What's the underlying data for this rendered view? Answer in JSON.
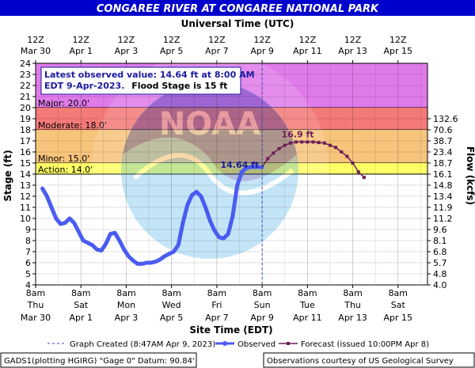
{
  "header": {
    "title": "CONGAREE RIVER AT CONGAREE NATIONAL PARK",
    "top_axis_title": "Universal Time (UTC)",
    "bottom_axis_title": "Site Time (EDT)"
  },
  "colors": {
    "title_bg": "#0000cc",
    "major_band": "#e07bea",
    "moderate_band": "#f47a78",
    "minor_band": "#f7c47c",
    "action_band": "#ffff66",
    "observed_line": "#4a5cf0",
    "forecast_line": "#6b1e5a",
    "info_text": "#1a1aa0"
  },
  "info_box": {
    "line1": "Latest observed value: 14.64 ft at 8:00 AM",
    "line2a": "EDT 9-Apr-2023.",
    "line2b": "Flood Stage is 15 ft"
  },
  "legend": {
    "created": "Graph Created (8:47AM Apr 9, 2023)",
    "observed": "Observed",
    "forecast": "Forecast (issued 10:00PM Apr 8)"
  },
  "footer": {
    "left": "GADS1(plotting HGIRG) \"Gage 0\" Datum: 90.84'",
    "right": "Observations courtesy of US Geological Survey"
  },
  "chart_data": {
    "type": "line",
    "ylabel": "Stage (ft)",
    "y2label": "Flow (kcfs)",
    "ylim": [
      4,
      24
    ],
    "y_ticks": [
      4,
      5,
      6,
      7,
      8,
      9,
      10,
      11,
      12,
      13,
      14,
      15,
      16,
      17,
      18,
      19,
      20,
      21,
      22,
      23,
      24
    ],
    "x_range_days": [
      "Mar 30 8am",
      "Apr 16 2pm"
    ],
    "bottom_ticks": [
      {
        "day": 0,
        "top": "8am",
        "mid": "Thu",
        "bot": "Mar 30"
      },
      {
        "day": 2,
        "top": "8am",
        "mid": "Sat",
        "bot": "Apr 1"
      },
      {
        "day": 4,
        "top": "8am",
        "mid": "Mon",
        "bot": "Apr 3"
      },
      {
        "day": 6,
        "top": "8am",
        "mid": "Wed",
        "bot": "Apr 5"
      },
      {
        "day": 8,
        "top": "8am",
        "mid": "Fri",
        "bot": "Apr 7"
      },
      {
        "day": 10,
        "top": "8am",
        "mid": "Sun",
        "bot": "Apr 9"
      },
      {
        "day": 12,
        "top": "8am",
        "mid": "Tue",
        "bot": "Apr 11"
      },
      {
        "day": 14,
        "top": "8am",
        "mid": "Thu",
        "bot": "Apr 13"
      },
      {
        "day": 16,
        "top": "8am",
        "mid": "Sat",
        "bot": "Apr 15"
      }
    ],
    "top_ticks": [
      {
        "day": 0,
        "top": "12Z",
        "bot": "Mar 30"
      },
      {
        "day": 2,
        "top": "12Z",
        "bot": "Apr 1"
      },
      {
        "day": 4,
        "top": "12Z",
        "bot": "Apr 3"
      },
      {
        "day": 6,
        "top": "12Z",
        "bot": "Apr 5"
      },
      {
        "day": 8,
        "top": "12Z",
        "bot": "Apr 7"
      },
      {
        "day": 10,
        "top": "12Z",
        "bot": "Apr 9"
      },
      {
        "day": 12,
        "top": "12Z",
        "bot": "Apr 11"
      },
      {
        "day": 14,
        "top": "12Z",
        "bot": "Apr 13"
      },
      {
        "day": 16,
        "top": "12Z",
        "bot": "Apr 15"
      }
    ],
    "flow_ticks": [
      {
        "stage": 4,
        "label": "4.0"
      },
      {
        "stage": 5,
        "label": "4.8"
      },
      {
        "stage": 6,
        "label": "5.7"
      },
      {
        "stage": 7,
        "label": "6.8"
      },
      {
        "stage": 8,
        "label": "8.1"
      },
      {
        "stage": 9,
        "label": "9.6"
      },
      {
        "stage": 10,
        "label": "11.2"
      },
      {
        "stage": 11,
        "label": "11.9"
      },
      {
        "stage": 12,
        "label": "13.4"
      },
      {
        "stage": 13,
        "label": "14.8"
      },
      {
        "stage": 14,
        "label": "16.1"
      },
      {
        "stage": 15,
        "label": "18.7"
      },
      {
        "stage": 16,
        "label": "23.4"
      },
      {
        "stage": 17,
        "label": "38.7"
      },
      {
        "stage": 18,
        "label": "70.6"
      },
      {
        "stage": 19,
        "label": "132.6"
      }
    ],
    "flood_categories": [
      {
        "name": "Major",
        "label": "Major: 20.0'",
        "from": 20,
        "to": 24
      },
      {
        "name": "Moderate",
        "label": "Moderate: 18.0'",
        "from": 18,
        "to": 20
      },
      {
        "name": "Minor",
        "label": "Minor: 15.0'",
        "from": 15,
        "to": 18
      },
      {
        "name": "Action",
        "label": "Action: 14.0'",
        "from": 14,
        "to": 15
      }
    ],
    "graph_created_day": 10,
    "observed": {
      "name": "Observed",
      "x": [
        0.3,
        0.5,
        0.7,
        0.9,
        1.1,
        1.3,
        1.5,
        1.7,
        1.9,
        2.1,
        2.3,
        2.5,
        2.7,
        2.9,
        3.1,
        3.3,
        3.5,
        3.7,
        3.9,
        4.1,
        4.3,
        4.5,
        4.7,
        4.9,
        5.1,
        5.3,
        5.5,
        5.7,
        5.9,
        6.1,
        6.3,
        6.5,
        6.7,
        6.9,
        7.1,
        7.3,
        7.5,
        7.7,
        7.9,
        8.1,
        8.3,
        8.5,
        8.7,
        8.9,
        9.1,
        9.3,
        9.5,
        9.7,
        9.9,
        10.0
      ],
      "y": [
        12.7,
        12.0,
        11.0,
        10.0,
        9.5,
        9.6,
        10.0,
        9.6,
        8.8,
        8.0,
        7.8,
        7.6,
        7.2,
        7.1,
        7.7,
        8.6,
        8.7,
        8.0,
        7.2,
        6.6,
        6.2,
        5.9,
        5.9,
        6.0,
        6.0,
        6.1,
        6.3,
        6.6,
        6.8,
        7.0,
        7.6,
        9.6,
        11.2,
        12.1,
        12.4,
        12.0,
        11.0,
        9.8,
        8.9,
        8.3,
        8.2,
        8.6,
        10.2,
        13.0,
        14.2,
        14.55,
        14.64,
        14.64,
        14.64,
        14.64
      ]
    },
    "observed_label": "14.64 ft",
    "observed_label_at": {
      "x": 10.0,
      "y": 14.64
    },
    "forecast": {
      "name": "Forecast (issued 10:00PM Apr 8)",
      "x": [
        10.25,
        10.5,
        10.75,
        11.0,
        11.25,
        11.5,
        11.75,
        12.0,
        12.25,
        12.5,
        12.75,
        13.0,
        13.25,
        13.5,
        13.75,
        14.0,
        14.25,
        14.5
      ],
      "y": [
        15.4,
        15.9,
        16.3,
        16.6,
        16.8,
        16.9,
        16.9,
        16.9,
        16.9,
        16.85,
        16.8,
        16.6,
        16.4,
        16.0,
        15.6,
        15.0,
        14.2,
        13.7
      ]
    },
    "forecast_label": "16.9 ft",
    "forecast_label_at": {
      "x": 11.5,
      "y": 16.9
    }
  }
}
